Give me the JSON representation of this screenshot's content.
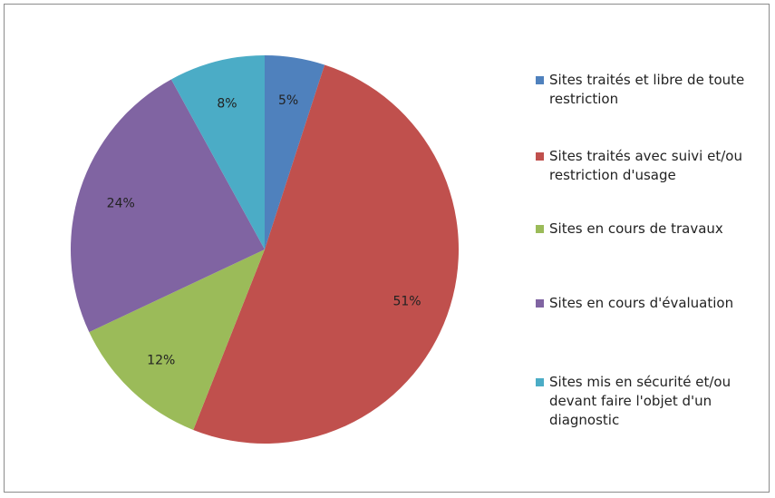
{
  "chart_data": {
    "type": "pie",
    "title": "",
    "series": [
      {
        "label": "Sites traités et libre de toute\nrestriction",
        "value": 5,
        "value_label": "5%",
        "color": "#4F81BD"
      },
      {
        "label": "Sites traités avec suivi et/ou\nrestriction d'usage",
        "value": 51,
        "value_label": "51%",
        "color": "#C0504D"
      },
      {
        "label": "Sites en cours de travaux",
        "value": 12,
        "value_label": "12%",
        "color": "#9BBB59"
      },
      {
        "label": "Sites en cours d'évaluation",
        "value": 24,
        "value_label": "24%",
        "color": "#8064A2"
      },
      {
        "label": "Sites mis en sécurité et/ou\ndevant faire l'objet d'un\ndiagnostic",
        "value": 8,
        "value_label": "8%",
        "color": "#4BACC6"
      }
    ],
    "legend_position": "right"
  }
}
